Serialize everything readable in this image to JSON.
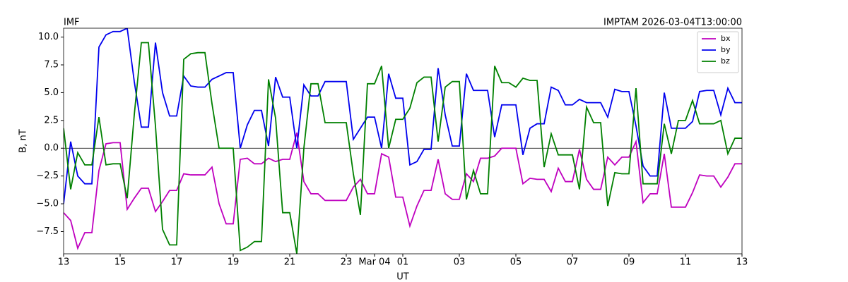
{
  "chart_data": {
    "type": "line",
    "title_left": "IMF",
    "title_right": "IMPTAM 2026-03-04T13:00:00",
    "x_label": "UT",
    "y_label": "B, nT",
    "x": [
      0,
      0.25,
      0.5,
      0.75,
      1,
      1.25,
      1.5,
      1.75,
      2,
      2.25,
      2.5,
      2.75,
      3,
      3.25,
      3.5,
      3.75,
      4,
      4.25,
      4.5,
      4.75,
      5,
      5.25,
      5.5,
      5.75,
      6,
      6.25,
      6.5,
      6.75,
      7,
      7.25,
      7.5,
      7.75,
      8,
      8.25,
      8.5,
      8.75,
      9,
      9.25,
      9.5,
      9.75,
      10,
      10.25,
      10.5,
      10.75,
      11,
      11.25,
      11.5,
      11.75,
      12,
      12.25,
      12.5,
      12.75,
      13,
      13.25,
      13.5,
      13.75,
      14,
      14.25,
      14.5,
      14.75,
      15,
      15.25,
      15.5,
      15.75,
      16,
      16.25,
      16.5,
      16.75,
      17,
      17.25,
      17.5,
      17.75,
      18,
      18.25,
      18.5,
      18.75,
      19,
      19.25,
      19.5,
      19.75,
      20,
      20.25,
      20.5,
      20.75,
      21,
      21.25,
      21.5,
      21.75,
      22,
      22.25,
      22.5,
      22.75,
      23,
      23.25,
      23.5,
      23.75,
      24
    ],
    "series": [
      {
        "name": "bx",
        "color": "#bf00bf",
        "values": [
          -5.8,
          -6.5,
          -9.0,
          -7.6,
          -7.6,
          -2.0,
          0.4,
          0.5,
          0.5,
          -5.5,
          -4.5,
          -3.6,
          -3.6,
          -5.7,
          -4.8,
          -3.8,
          -3.8,
          -2.3,
          -2.4,
          -2.4,
          -2.4,
          -1.7,
          -5.0,
          -6.8,
          -6.8,
          -1.0,
          -0.9,
          -1.4,
          -1.4,
          -0.9,
          -1.2,
          -1.0,
          -1.0,
          1.4,
          -3.0,
          -4.1,
          -4.1,
          -4.7,
          -4.7,
          -4.7,
          -4.7,
          -3.5,
          -2.8,
          -4.1,
          -4.1,
          -0.5,
          -0.8,
          -4.4,
          -4.4,
          -7.0,
          -5.2,
          -3.8,
          -3.8,
          -1.0,
          -4.1,
          -4.6,
          -4.6,
          -2.3,
          -3.0,
          -0.9,
          -0.9,
          -0.7,
          0.0,
          0.0,
          0.0,
          -3.2,
          -2.7,
          -2.8,
          -2.8,
          -3.9,
          -1.8,
          -3.0,
          -3.0,
          -0.1,
          -2.8,
          -3.7,
          -3.7,
          -0.8,
          -1.5,
          -0.8,
          -0.8,
          0.6,
          -4.9,
          -4.1,
          -4.1,
          -0.5,
          -5.3,
          -5.3,
          -5.3,
          -4.0,
          -2.4,
          -2.5,
          -2.5,
          -3.5,
          -2.6,
          -1.4,
          -1.4
        ]
      },
      {
        "name": "by",
        "color": "#0000ee",
        "values": [
          -5.0,
          0.6,
          -2.5,
          -3.2,
          -3.2,
          9.1,
          10.2,
          10.5,
          10.5,
          10.8,
          6.0,
          1.9,
          1.9,
          9.5,
          5.0,
          2.9,
          2.9,
          6.5,
          5.6,
          5.5,
          5.5,
          6.2,
          6.5,
          6.8,
          6.8,
          0.0,
          2.1,
          3.4,
          3.4,
          0.2,
          6.4,
          4.6,
          4.6,
          0.0,
          5.7,
          4.7,
          4.7,
          6.0,
          6.0,
          6.0,
          6.0,
          0.8,
          1.8,
          2.8,
          2.8,
          0.0,
          6.7,
          4.5,
          4.5,
          -1.5,
          -1.2,
          -0.1,
          -0.1,
          7.2,
          3.0,
          0.2,
          0.2,
          6.7,
          5.2,
          5.2,
          5.2,
          1.0,
          3.9,
          3.9,
          3.9,
          -0.6,
          1.8,
          2.2,
          2.2,
          5.5,
          5.2,
          3.9,
          3.9,
          4.4,
          4.1,
          4.1,
          4.1,
          2.8,
          5.3,
          5.1,
          5.1,
          2.0,
          -1.6,
          -2.5,
          -2.5,
          5.0,
          1.8,
          1.8,
          1.8,
          2.4,
          5.1,
          5.2,
          5.2,
          3.0,
          5.4,
          4.1,
          4.1
        ]
      },
      {
        "name": "bz",
        "color": "#008000",
        "values": [
          1.8,
          -3.7,
          -0.4,
          -1.5,
          -1.5,
          2.8,
          -1.5,
          -1.4,
          -1.4,
          -4.5,
          3.0,
          9.5,
          9.5,
          2.0,
          -7.3,
          -8.7,
          -8.7,
          8.0,
          8.5,
          8.6,
          8.6,
          4.0,
          0.0,
          0.0,
          0.0,
          -9.2,
          -8.9,
          -8.4,
          -8.4,
          6.2,
          2.7,
          -5.8,
          -5.8,
          -9.5,
          0.0,
          5.8,
          5.8,
          2.3,
          2.3,
          2.3,
          2.3,
          -2.3,
          -6.0,
          5.8,
          5.8,
          7.4,
          0.0,
          2.6,
          2.6,
          3.6,
          5.9,
          6.4,
          6.4,
          0.6,
          5.5,
          6.0,
          6.0,
          -4.6,
          -2.0,
          -4.1,
          -4.1,
          7.4,
          5.9,
          5.9,
          5.5,
          6.3,
          6.1,
          6.1,
          -1.7,
          1.3,
          -0.6,
          -0.6,
          -0.6,
          -3.7,
          3.7,
          2.3,
          2.3,
          -5.2,
          -2.2,
          -2.3,
          -2.3,
          5.4,
          -3.2,
          -3.2,
          -3.2,
          2.2,
          -0.5,
          2.5,
          2.5,
          4.3,
          2.2,
          2.2,
          2.2,
          2.5,
          -0.5,
          0.9,
          0.9
        ]
      }
    ],
    "xlim": [
      0,
      24
    ],
    "xticks": [
      {
        "value": 0,
        "label": "13"
      },
      {
        "value": 2,
        "label": "15"
      },
      {
        "value": 4,
        "label": "17"
      },
      {
        "value": 6,
        "label": "19"
      },
      {
        "value": 8,
        "label": "21"
      },
      {
        "value": 10,
        "label": "23"
      },
      {
        "value": 11,
        "label": "Mar 04"
      },
      {
        "value": 12,
        "label": "01"
      },
      {
        "value": 14,
        "label": "03"
      },
      {
        "value": 16,
        "label": "05"
      },
      {
        "value": 18,
        "label": "07"
      },
      {
        "value": 20,
        "label": "09"
      },
      {
        "value": 22,
        "label": "11"
      },
      {
        "value": 24,
        "label": "13"
      }
    ],
    "ylim": [
      -9.5,
      10.8
    ],
    "yticks": [
      {
        "value": -7.5,
        "label": "−7.5"
      },
      {
        "value": -5,
        "label": "−5.0"
      },
      {
        "value": -2.5,
        "label": "−2.5"
      },
      {
        "value": 0,
        "label": "0.0"
      },
      2.5,
      {
        "value": 5,
        "label": "5.0"
      },
      7.5,
      {
        "value": 10,
        "label": "10.0"
      }
    ],
    "zero_line": true,
    "legend": "upper right"
  }
}
